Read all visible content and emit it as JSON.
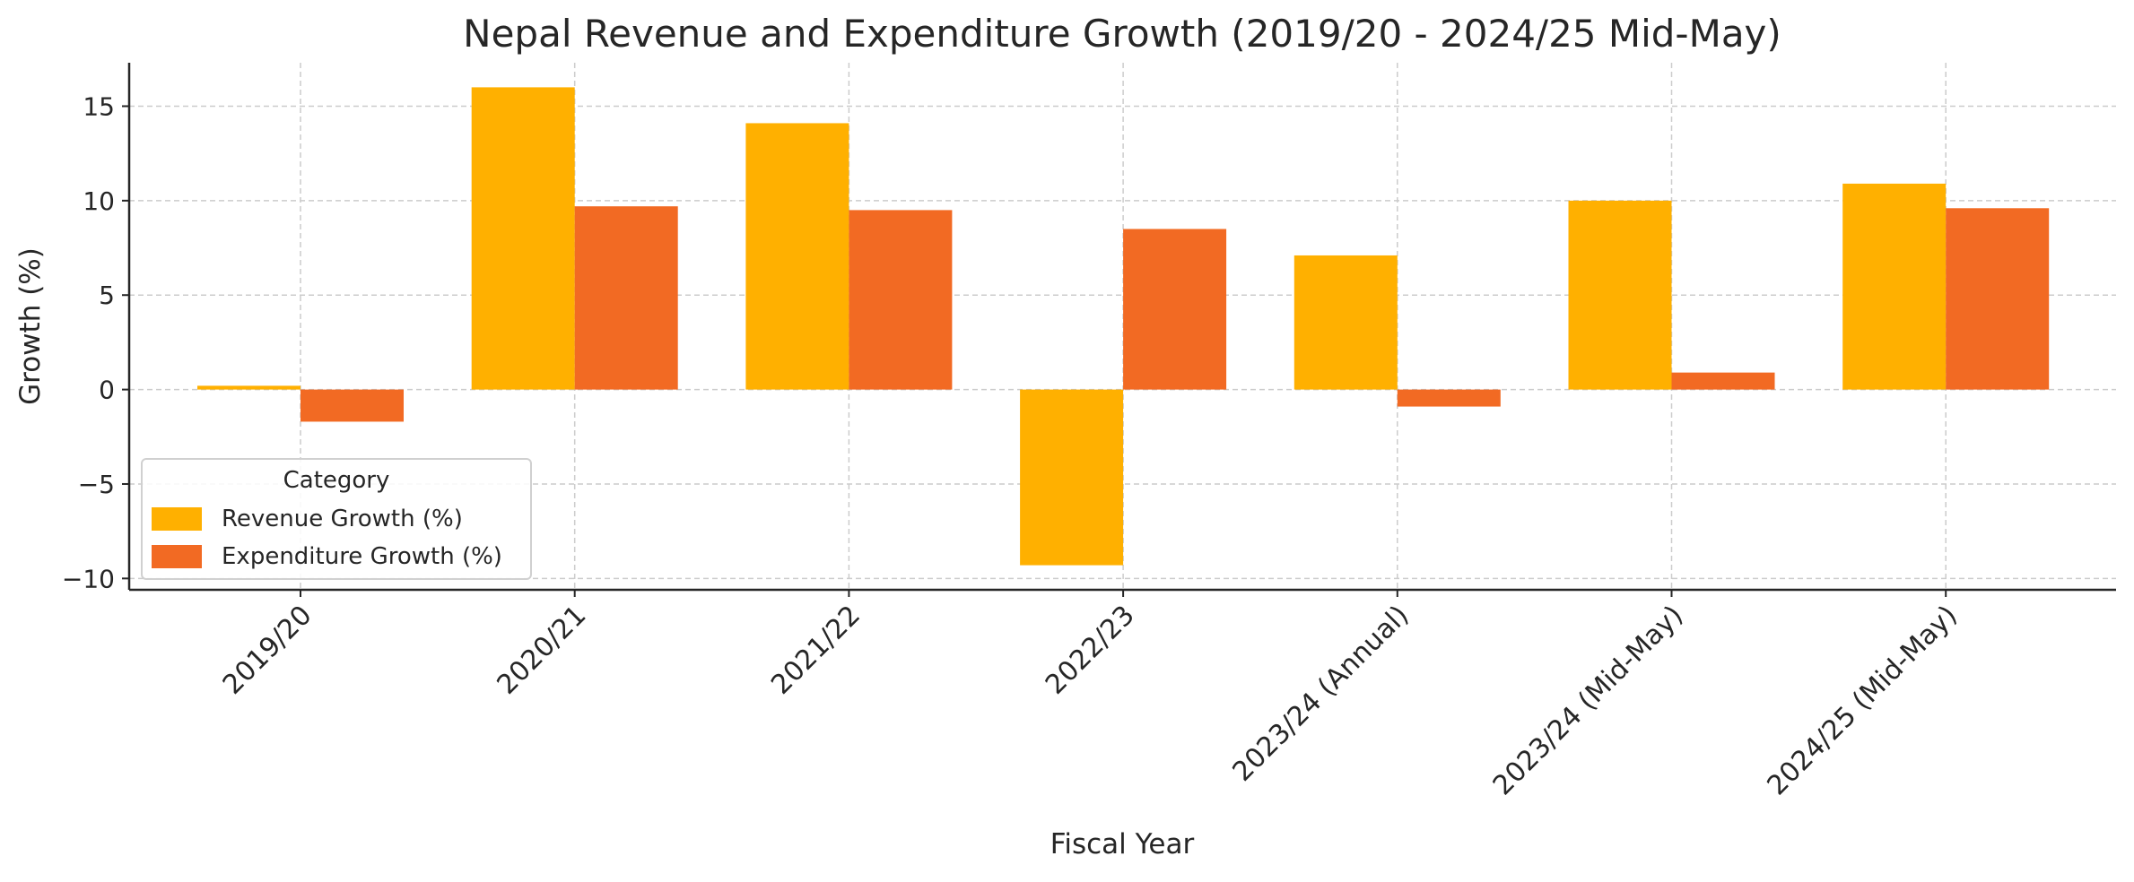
{
  "chart_data": {
    "type": "bar",
    "title": "Nepal Revenue and Expenditure Growth (2019/20 - 2024/25 Mid-May)",
    "xlabel": "Fiscal Year",
    "ylabel": "Growth (%)",
    "ylim": [
      -10.6,
      17.3
    ],
    "yticks": [
      -10,
      -5,
      0,
      5,
      10,
      15
    ],
    "ytick_labels": [
      "−10",
      "−5",
      "0",
      "5",
      "10",
      "15"
    ],
    "grid": true,
    "categories": [
      "2019/20",
      "2020/21",
      "2021/22",
      "2022/23",
      "2023/24 (Annual)",
      "2023/24 (Mid-May)",
      "2024/25 (Mid-May)"
    ],
    "series": [
      {
        "name": "Revenue Growth (%)",
        "color": "#FFB000",
        "values": [
          0.2,
          16.0,
          14.1,
          -9.3,
          7.1,
          10.0,
          10.9
        ]
      },
      {
        "name": "Expenditure Growth (%)",
        "color": "#F26A23",
        "values": [
          -1.7,
          9.7,
          9.5,
          8.5,
          -0.9,
          0.9,
          9.6
        ]
      }
    ],
    "legend": {
      "title": "Category",
      "placement": "lower-left"
    }
  }
}
